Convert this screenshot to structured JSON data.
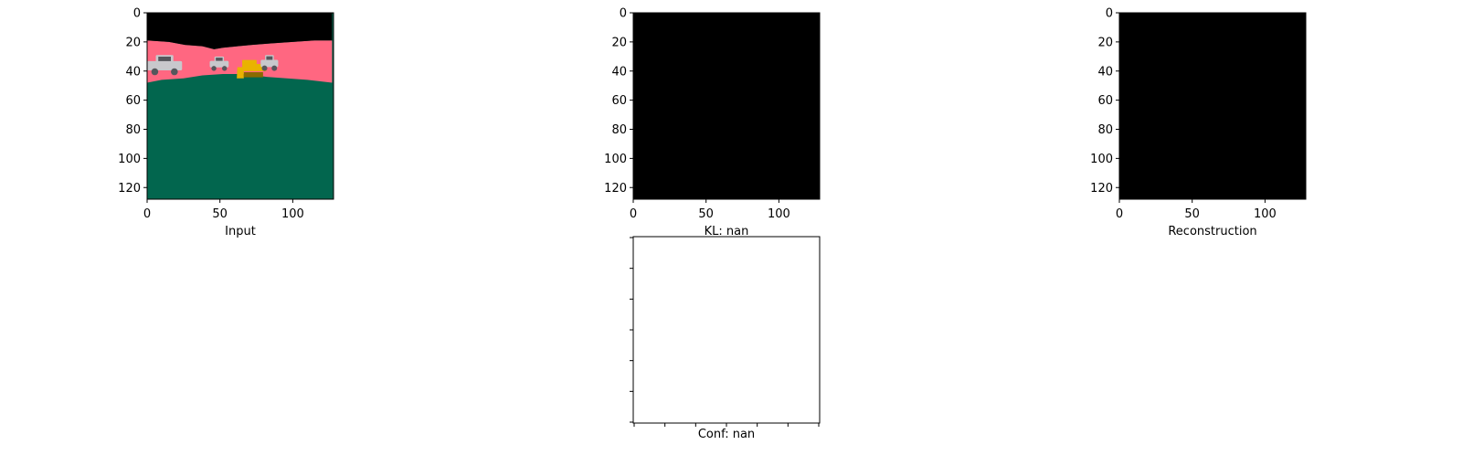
{
  "colors": {
    "sky": "#000000",
    "road": "#ff6781",
    "ground": "#02664e",
    "car_body": "#c8c8cc",
    "car_dark": "#55575c",
    "bulldozer": "#e9b300",
    "bulldozer_dark": "#8a6a00",
    "blank_panel": "#000000",
    "empty_panel": "#ffffff"
  },
  "chart_data": [
    {
      "type": "image",
      "content": "rendered scene",
      "xlabel": "Input",
      "xlim": [
        0,
        127
      ],
      "ylim": [
        127,
        0
      ],
      "x_ticks": [
        0,
        50,
        100
      ],
      "y_ticks": [
        0,
        20,
        40,
        60,
        80,
        100,
        120
      ],
      "scene": {
        "road_top_profile": [
          [
            0,
            19
          ],
          [
            15,
            20
          ],
          [
            26,
            22
          ],
          [
            38,
            23
          ],
          [
            46,
            25
          ],
          [
            52,
            24
          ],
          [
            62,
            23
          ],
          [
            72,
            22
          ],
          [
            85,
            21
          ],
          [
            100,
            20
          ],
          [
            115,
            19
          ],
          [
            127,
            19
          ]
        ],
        "road_bottom_profile": [
          [
            0,
            48
          ],
          [
            10,
            46
          ],
          [
            25,
            45
          ],
          [
            38,
            43
          ],
          [
            52,
            42
          ],
          [
            68,
            42
          ],
          [
            82,
            44
          ],
          [
            96,
            45
          ],
          [
            110,
            46
          ],
          [
            127,
            48
          ]
        ],
        "objects": [
          {
            "icon": "pickup-truck-icon",
            "x": [
              0,
              24
            ],
            "y": [
              29,
              43
            ]
          },
          {
            "icon": "suv-car-icon",
            "x": [
              43,
              56
            ],
            "y": [
              30,
              40
            ]
          },
          {
            "icon": "bulldozer-icon",
            "x": [
              62,
              84
            ],
            "y": [
              31,
              45
            ]
          },
          {
            "icon": "jeep-car-icon",
            "x": [
              78,
              90
            ],
            "y": [
              29,
              40
            ]
          }
        ]
      }
    },
    {
      "type": "image",
      "content": "uniform black",
      "xlabel": "KL: nan",
      "xlim": [
        0,
        127
      ],
      "ylim": [
        127,
        0
      ],
      "x_ticks": [
        0,
        50,
        100
      ],
      "y_ticks": [
        0,
        20,
        40,
        60,
        80,
        100,
        120
      ]
    },
    {
      "type": "image",
      "content": "uniform black",
      "xlabel": "Reconstruction",
      "xlim": [
        0,
        127
      ],
      "ylim": [
        127,
        0
      ],
      "x_ticks": [
        0,
        50,
        100
      ],
      "y_ticks": [
        0,
        20,
        40,
        60,
        80,
        100,
        120
      ]
    },
    {
      "type": "empty",
      "xlabel": "Conf: nan",
      "x_tick_count": 7,
      "y_tick_count": 7
    }
  ]
}
